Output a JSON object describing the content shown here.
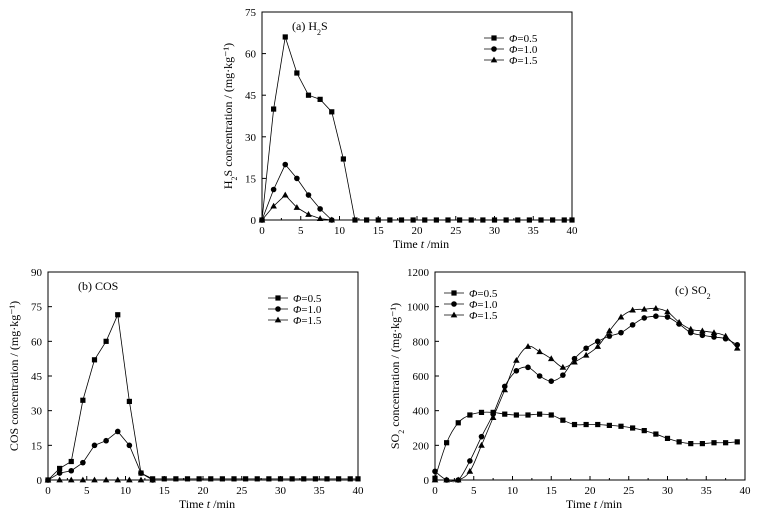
{
  "figure": "three-panel line chart",
  "chart_data": [
    {
      "type": "line",
      "panel": "a",
      "title": "(a) H₂S",
      "xlabel": "Time",
      "xlabel_symbol": "t",
      "xlabel_unit": "/min",
      "ylabel": "H₂S concentration",
      "ylabel_unit": "/ (mg·kg⁻¹)",
      "xlim": [
        0,
        40
      ],
      "ylim": [
        0,
        75
      ],
      "xticks": [
        0,
        5,
        10,
        15,
        20,
        25,
        30,
        35,
        40
      ],
      "yticks": [
        0,
        15,
        30,
        45,
        60,
        75
      ],
      "grid": false,
      "legend_position": "top-right",
      "series": [
        {
          "name": "Φ=0.5",
          "marker": "square",
          "line": "straight",
          "x": [
            0,
            1.5,
            3,
            4.5,
            6,
            7.5,
            9,
            10.5,
            12,
            13.5,
            15,
            16.5,
            18,
            19.5,
            21,
            22.5,
            24,
            25.5,
            27,
            28.5,
            30,
            31.5,
            33,
            34.5,
            36,
            37.5,
            39,
            40
          ],
          "y": [
            0,
            40,
            66,
            53,
            45,
            43.5,
            39,
            22,
            0,
            0,
            0,
            0,
            0,
            0,
            0,
            0,
            0,
            0,
            0,
            0,
            0,
            0,
            0,
            0,
            0,
            0,
            0,
            0
          ]
        },
        {
          "name": "Φ=1.0",
          "marker": "circle",
          "line": "straight",
          "x": [
            0,
            1.5,
            3,
            4.5,
            6,
            7.5,
            9
          ],
          "y": [
            0,
            11,
            20,
            15,
            9,
            4,
            0
          ]
        },
        {
          "name": "Φ=1.5",
          "marker": "triangle",
          "line": "straight",
          "x": [
            0,
            1.5,
            3,
            4.5,
            6,
            7.5,
            9
          ],
          "y": [
            0,
            5,
            9,
            4.5,
            2,
            0.5,
            0
          ]
        }
      ]
    },
    {
      "type": "line",
      "panel": "b",
      "title": "(b) COS",
      "xlabel": "Time",
      "xlabel_symbol": "t",
      "xlabel_unit": "/min",
      "ylabel": "COS concentration",
      "ylabel_unit": "/ (mg·kg⁻¹)",
      "xlim": [
        0,
        40
      ],
      "ylim": [
        0,
        90
      ],
      "xticks": [
        0,
        5,
        10,
        15,
        20,
        25,
        30,
        35,
        40
      ],
      "yticks": [
        0,
        15,
        30,
        45,
        60,
        75,
        90
      ],
      "grid": false,
      "legend_position": "top-right",
      "series": [
        {
          "name": "Φ=0.5",
          "marker": "square",
          "line": "straight",
          "x": [
            0,
            1.5,
            3,
            4.5,
            6,
            7.5,
            9,
            10.5,
            12,
            13.5,
            15,
            16.5,
            18,
            19.5,
            21,
            22.5,
            24,
            25.5,
            27,
            28.5,
            30,
            31.5,
            33,
            34.5,
            36,
            37.5,
            39,
            40
          ],
          "y": [
            0,
            5,
            8,
            34.5,
            52,
            60,
            71.5,
            34,
            3,
            0.5,
            0.5,
            0.5,
            0.5,
            0.5,
            0.5,
            0.5,
            0.5,
            0.5,
            0.5,
            0.5,
            0.5,
            0.5,
            0.5,
            0.5,
            0.5,
            0.5,
            0.5,
            0.5
          ]
        },
        {
          "name": "Φ=1.0",
          "marker": "circle",
          "line": "straight",
          "x": [
            0,
            1.5,
            3,
            4.5,
            6,
            7.5,
            9,
            10.5,
            12,
            13.5
          ],
          "y": [
            0,
            3,
            4,
            7.5,
            15,
            17,
            21,
            15,
            3,
            0
          ]
        },
        {
          "name": "Φ=1.5",
          "marker": "triangle",
          "line": "straight",
          "x": [
            0,
            1.5,
            3,
            4.5,
            6,
            7.5,
            9,
            10.5,
            12,
            13.5
          ],
          "y": [
            0,
            0,
            0,
            0,
            0,
            0,
            0,
            0,
            0,
            0
          ]
        }
      ]
    },
    {
      "type": "line",
      "panel": "c",
      "title": "(c) SO₂",
      "xlabel": "Time",
      "xlabel_symbol": "t",
      "xlabel_unit": "/min",
      "ylabel": "SO₂ concentration",
      "ylabel_unit": "/ (mg·kg⁻¹)",
      "xlim": [
        0,
        40
      ],
      "ylim": [
        0,
        1200
      ],
      "xticks": [
        0,
        5,
        10,
        15,
        20,
        25,
        30,
        35,
        40
      ],
      "yticks": [
        0,
        200,
        400,
        600,
        800,
        1000,
        1200
      ],
      "grid": false,
      "legend_position": "top-left",
      "series": [
        {
          "name": "Φ=0.5",
          "marker": "square",
          "line": "smooth",
          "x": [
            0,
            1.5,
            3,
            4.5,
            6,
            7.5,
            9,
            10.5,
            12,
            13.5,
            15,
            16.5,
            18,
            19.5,
            21,
            22.5,
            24,
            25.5,
            27,
            28.5,
            30,
            31.5,
            33,
            34.5,
            36,
            37.5,
            39
          ],
          "y": [
            10,
            215,
            330,
            375,
            390,
            390,
            380,
            375,
            375,
            380,
            375,
            345,
            320,
            320,
            320,
            315,
            310,
            300,
            285,
            265,
            240,
            220,
            210,
            210,
            215,
            215,
            220
          ]
        },
        {
          "name": "Φ=1.0",
          "marker": "circle",
          "line": "smooth",
          "x": [
            0,
            1.5,
            3,
            4.5,
            6,
            7.5,
            9,
            10.5,
            12,
            13.5,
            15,
            16.5,
            18,
            19.5,
            21,
            22.5,
            24,
            25.5,
            27,
            28.5,
            30,
            31.5,
            33,
            34.5,
            36,
            37.5,
            39
          ],
          "y": [
            50,
            0,
            0,
            110,
            250,
            380,
            540,
            630,
            650,
            600,
            570,
            605,
            700,
            760,
            800,
            830,
            850,
            895,
            935,
            945,
            940,
            900,
            850,
            835,
            825,
            815,
            780
          ]
        },
        {
          "name": "Φ=1.5",
          "marker": "triangle",
          "line": "smooth",
          "x": [
            0,
            1.5,
            3,
            4.5,
            6,
            7.5,
            9,
            10.5,
            12,
            13.5,
            15,
            16.5,
            18,
            19.5,
            21,
            22.5,
            24,
            25.5,
            27,
            28.5,
            30,
            31.5,
            33,
            34.5,
            36,
            37.5,
            39
          ],
          "y": [
            0,
            0,
            0,
            50,
            200,
            360,
            520,
            690,
            770,
            740,
            700,
            650,
            680,
            720,
            770,
            860,
            940,
            980,
            985,
            990,
            970,
            910,
            870,
            860,
            850,
            830,
            760
          ]
        }
      ]
    }
  ]
}
